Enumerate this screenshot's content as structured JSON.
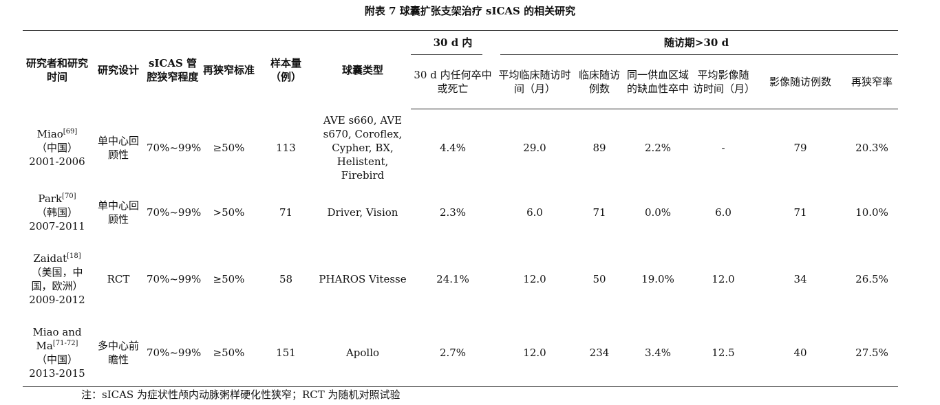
{
  "title": "附表 7  球囊扩张支架治疗 sICAS 的相关研究",
  "headers": {
    "author": "研究者和研究时间",
    "design": "研究设计",
    "degree": "sICAS 管腔狭窄程度",
    "restenosis_criteria": "再狭窄标准",
    "sample": "样本量（例）",
    "balloon": "球囊类型",
    "group_30d": "30 d 内",
    "group_followup": "随访期>30 d",
    "stroke_death_30d": "30 d 内任何卒中或死亡",
    "clinical_followup_time": "平均临床随访时间（月）",
    "clinical_followup_n": "临床随访例数",
    "ischemic_stroke": "同一供血区域的缺血性卒中",
    "imaging_followup_time": "平均影像随访时间（月）",
    "imaging_followup_n": "影像随访例数",
    "restenosis_rate": "再狭窄率"
  },
  "rows": [
    {
      "author": "Miao",
      "ref": "[69]",
      "country": "（中国）",
      "years": "2001-2006",
      "design": "单中心回顾性",
      "degree": "70%~99%",
      "criteria": "≥50%",
      "sample": "113",
      "balloon": "AVE s660, AVE s670, Coroflex, Cypher, BX, Helistent, Firebird",
      "stroke_death": "4.4%",
      "clin_time": "29.0",
      "clin_n": "89",
      "isch": "2.2%",
      "img_time": "-",
      "img_n": "79",
      "rest": "20.3%"
    },
    {
      "author": "Park",
      "ref": "[70]",
      "country": "（韩国）",
      "years": "2007-2011",
      "design": "单中心回顾性",
      "degree": "70%~99%",
      "criteria": ">50%",
      "sample": "71",
      "balloon": "Driver, Vision",
      "stroke_death": "2.3%",
      "clin_time": "6.0",
      "clin_n": "71",
      "isch": "0.0%",
      "img_time": "6.0",
      "img_n": "71",
      "rest": "10.0%"
    },
    {
      "author": "Zaidat",
      "ref": "[18]",
      "country": "（美国，中国，欧洲）",
      "years": "2009-2012",
      "design": "RCT",
      "degree": "70%~99%",
      "criteria": "≥50%",
      "sample": "58",
      "balloon": "PHAROS Vitesse",
      "stroke_death": "24.1%",
      "clin_time": "12.0",
      "clin_n": "50",
      "isch": "19.0%",
      "img_time": "12.0",
      "img_n": "34",
      "rest": "26.5%"
    },
    {
      "author": "Miao and Ma",
      "ref": "[71-72]",
      "country": "（中国）",
      "years": "2013-2015",
      "design": "多中心前瞻性",
      "degree": "70%~99%",
      "criteria": "≥50%",
      "sample": "151",
      "balloon": "Apollo",
      "stroke_death": "2.7%",
      "clin_time": "12.0",
      "clin_n": "234",
      "isch": "3.4%",
      "img_time": "12.5",
      "img_n": "40",
      "rest": "27.5%"
    }
  ],
  "note": "注：sICAS 为症状性颅内动脉粥样硬化性狭窄；RCT 为随机对照试验"
}
